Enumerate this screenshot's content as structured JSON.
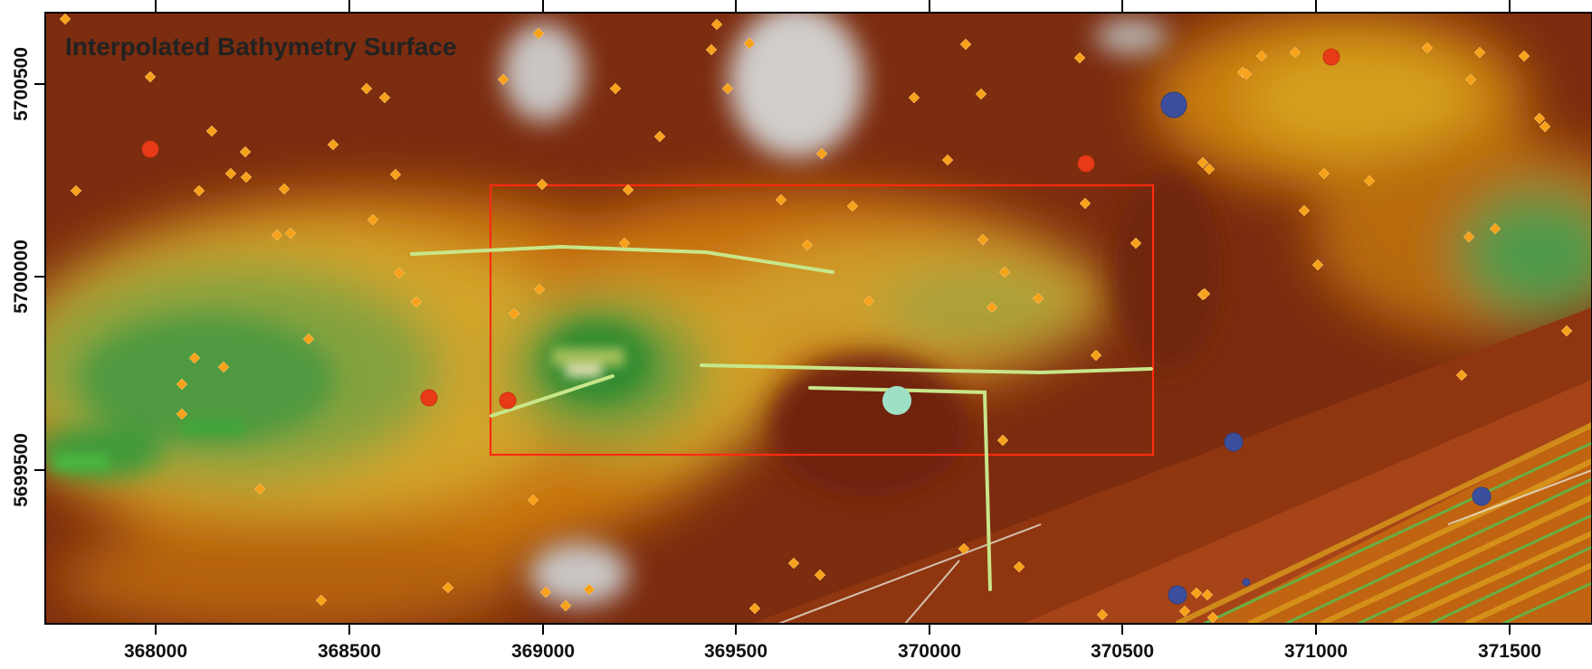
{
  "map": {
    "title": "Interpolated Bathymetry Surface",
    "x_axis": {
      "tick_labels": [
        "368000",
        "368500",
        "369000",
        "369500",
        "370000",
        "370500",
        "371000",
        "371500"
      ]
    },
    "y_axis": {
      "tick_labels": [
        "5700500",
        "5700000",
        "5699500"
      ]
    },
    "colors": {
      "deep": "#7a2a0e",
      "mid_deep": "#9a3e12",
      "orange": "#d4820c",
      "yellow": "#d9b025",
      "shallow_green": "#6c9a3a",
      "green": "#2f8a2e",
      "grey_patch": "#c9c6c4",
      "survey_line": "#c8e68a",
      "survey_box": "#ff2a10",
      "orange_marker": "#f7a21b",
      "red_marker": "#e83a17",
      "blue_marker": "#3b4f9c",
      "teal_marker": "#9de0c6"
    },
    "markers": {
      "orange_diamonds": 80,
      "red_circles": 6,
      "blue_circles": 6,
      "teal_circles": 1
    }
  }
}
